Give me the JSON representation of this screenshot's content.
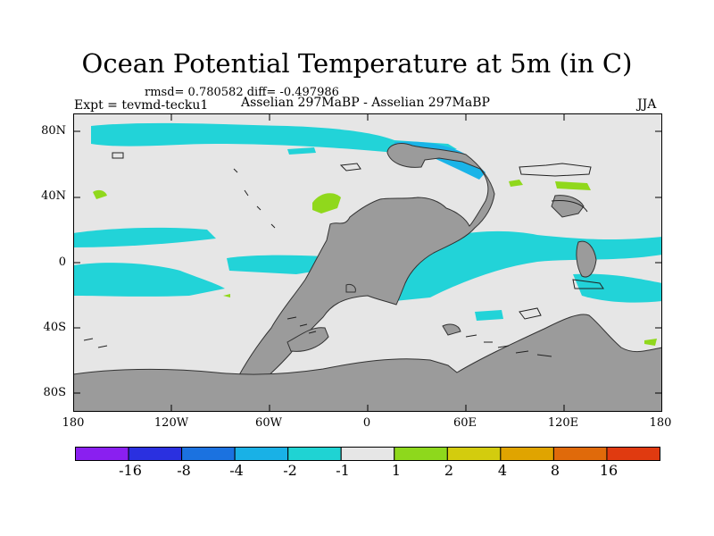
{
  "title": "Ocean Potential Temperature at 5m (in C)",
  "stats": "rmsd= 0.780582 diff= -0.497986",
  "experiment": "Expt = tevmd-tecku1",
  "subtitle": "Asselian 297MaBP - Asselian 297MaBP",
  "season": "JJA",
  "lat_labels": [
    "80N",
    "40N",
    "0",
    "40S",
    "80S"
  ],
  "lon_labels": [
    "180",
    "120W",
    "60W",
    "0",
    "60E",
    "120E",
    "180"
  ],
  "colors": {
    "land": "#9b9b9b",
    "neutral": "#e6e6e6",
    "cyan": "#22d3d8",
    "lightblue": "#1ab4e8",
    "green": "#90d81c"
  },
  "colorbar": {
    "colors": [
      "#8a1ff0",
      "#2a30e0",
      "#1b72e0",
      "#19b1e6",
      "#1fd3d3",
      "#e6e6e6",
      "#8ed81c",
      "#d3cc0e",
      "#e0a400",
      "#e06a0a",
      "#e03a10"
    ],
    "labels": [
      "-16",
      "-8",
      "-4",
      "-2",
      "-1",
      "1",
      "2",
      "4",
      "8",
      "16"
    ]
  }
}
